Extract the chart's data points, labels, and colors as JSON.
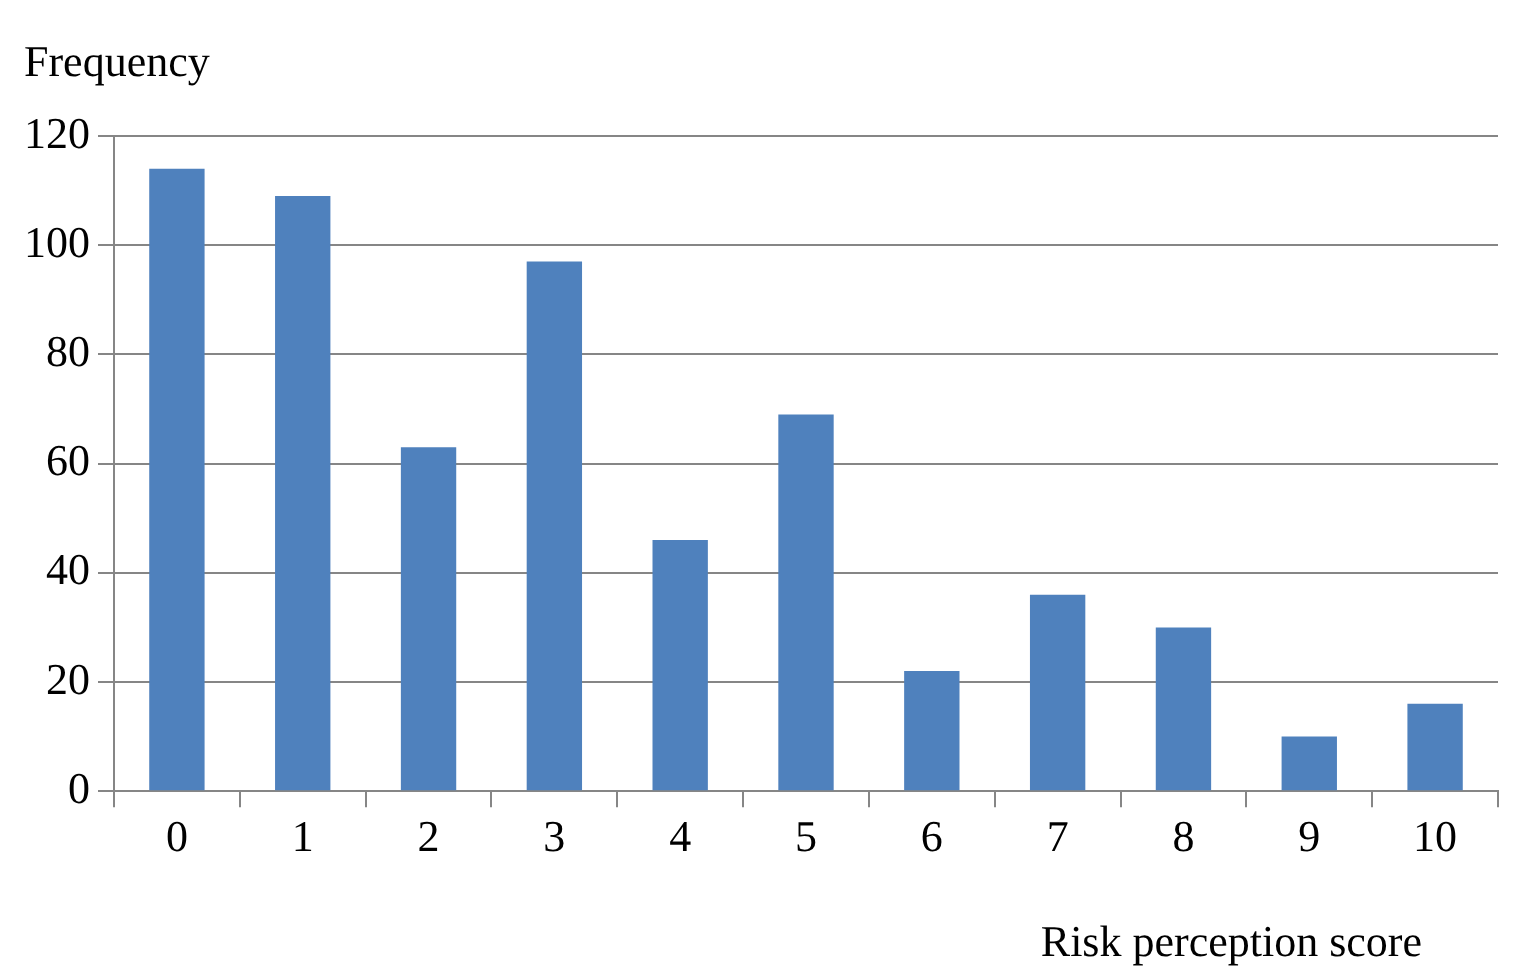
{
  "chart_data": {
    "type": "bar",
    "xlabel": "Risk perception score",
    "ylabel": "Frequency",
    "categories": [
      "0",
      "1",
      "2",
      "3",
      "4",
      "5",
      "6",
      "7",
      "8",
      "9",
      "10"
    ],
    "values": [
      114,
      109,
      63,
      97,
      46,
      69,
      22,
      36,
      30,
      10,
      16
    ],
    "color": "#4f81bd",
    "ylim": [
      0,
      120
    ],
    "yticks": [
      0,
      20,
      40,
      60,
      80,
      100,
      120
    ],
    "grid": "y",
    "legend": false
  }
}
